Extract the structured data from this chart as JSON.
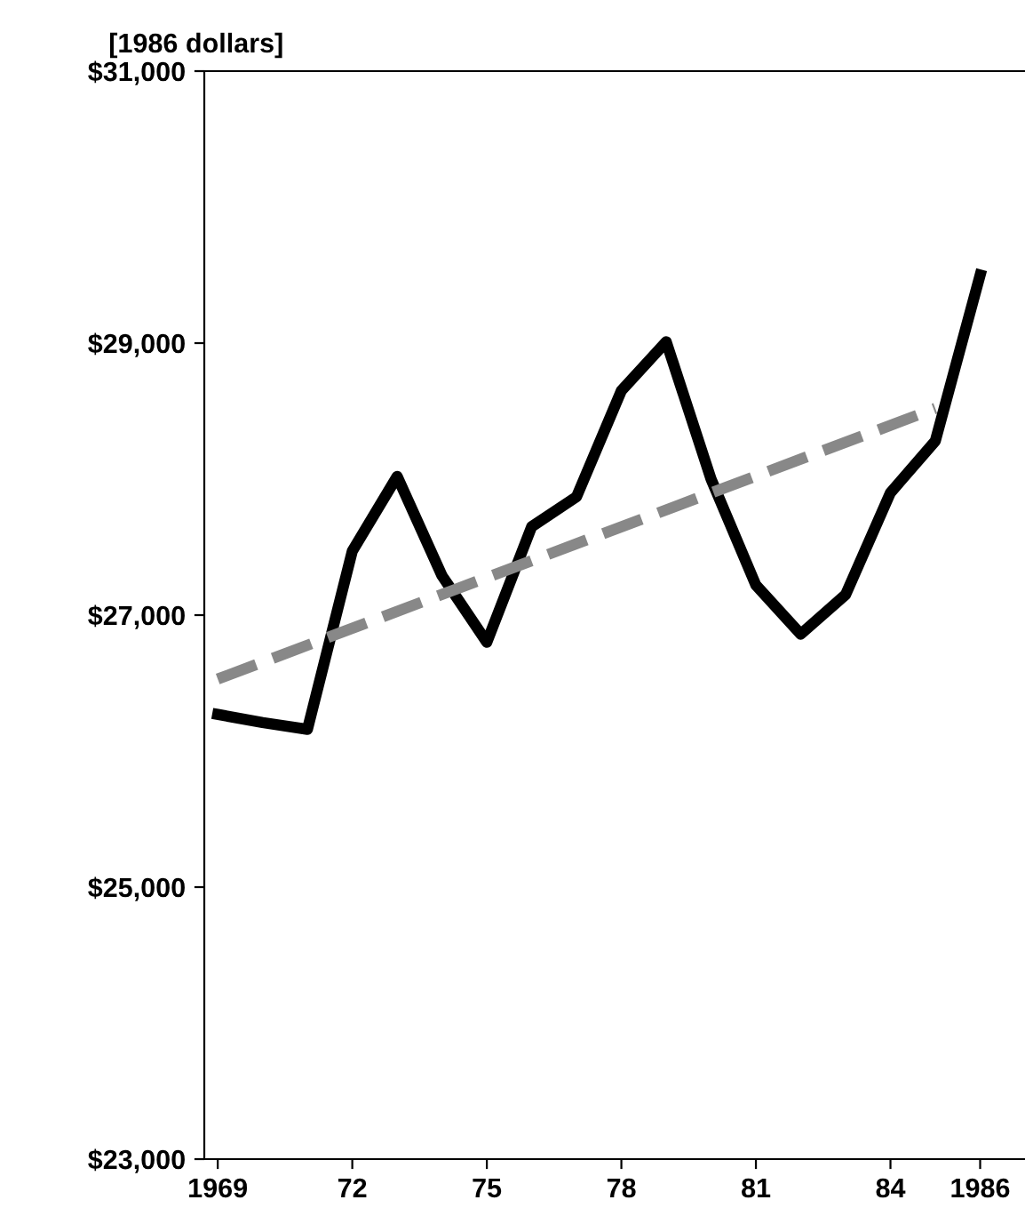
{
  "chart_data": {
    "type": "line",
    "ylabel": "[1986 dollars]",
    "x": [
      1969,
      1970,
      1971,
      1972,
      1973,
      1974,
      1975,
      1976,
      1977,
      1978,
      1979,
      1980,
      1981,
      1982,
      1983,
      1984,
      1985,
      1986
    ],
    "series": [
      {
        "color": "#000000",
        "line_style": "solid",
        "values": [
          26270,
          26210,
          26160,
          27470,
          28020,
          27290,
          26800,
          27650,
          27870,
          28650,
          29010,
          28000,
          27220,
          26860,
          27150,
          27900,
          28280,
          29500
        ]
      },
      {
        "type": "line",
        "color": "#888888",
        "line_style": "dashed",
        "x": [
          1969,
          1985
        ],
        "values": [
          26530,
          28520
        ]
      }
    ],
    "xlim": [
      1968.7,
      1987
    ],
    "xticks": [
      1969,
      {
        "value": 1972,
        "label": "72"
      },
      {
        "value": 1975,
        "label": "75"
      },
      {
        "value": 1978,
        "label": "78"
      },
      {
        "value": 1981,
        "label": "81"
      },
      {
        "value": 1984,
        "label": "84"
      },
      1986
    ],
    "ylim": [
      23000,
      31000
    ],
    "yticks": [
      {
        "value": 23000,
        "label": "$23,000"
      },
      {
        "value": 25000,
        "label": "$25,000"
      },
      {
        "value": 27000,
        "label": "$27,000"
      },
      {
        "value": 29000,
        "label": "$29,000"
      },
      {
        "value": 31000,
        "label": "$31,000"
      }
    ],
    "grid": false,
    "legend": false
  }
}
